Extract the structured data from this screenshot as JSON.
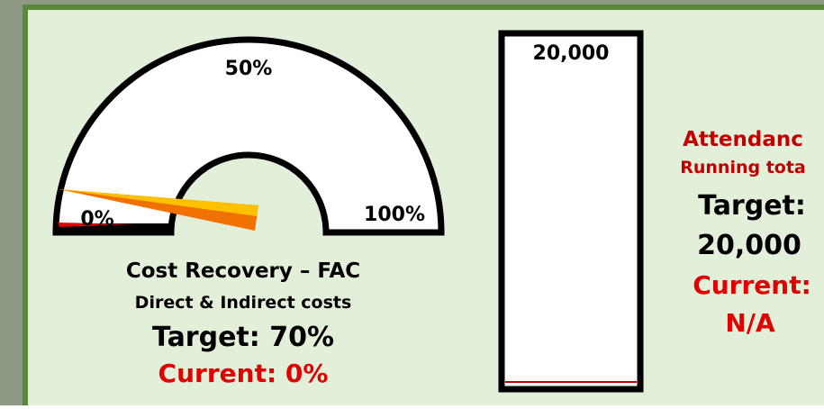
{
  "gauge": {
    "labels": [
      "0%",
      "50%",
      "100%"
    ],
    "title": "Cost Recovery – FAC",
    "subtitle": "Direct & Indirect costs",
    "target": "Target: 70%",
    "current": "Current: 0%"
  },
  "bar": {
    "top_label": "20,000"
  },
  "attendance": {
    "title": "Attendanc",
    "subtitle": "Running tota",
    "target_label": "Target:",
    "target_value": "20,000",
    "current_label": "Current:",
    "current_value": "N/A"
  }
}
